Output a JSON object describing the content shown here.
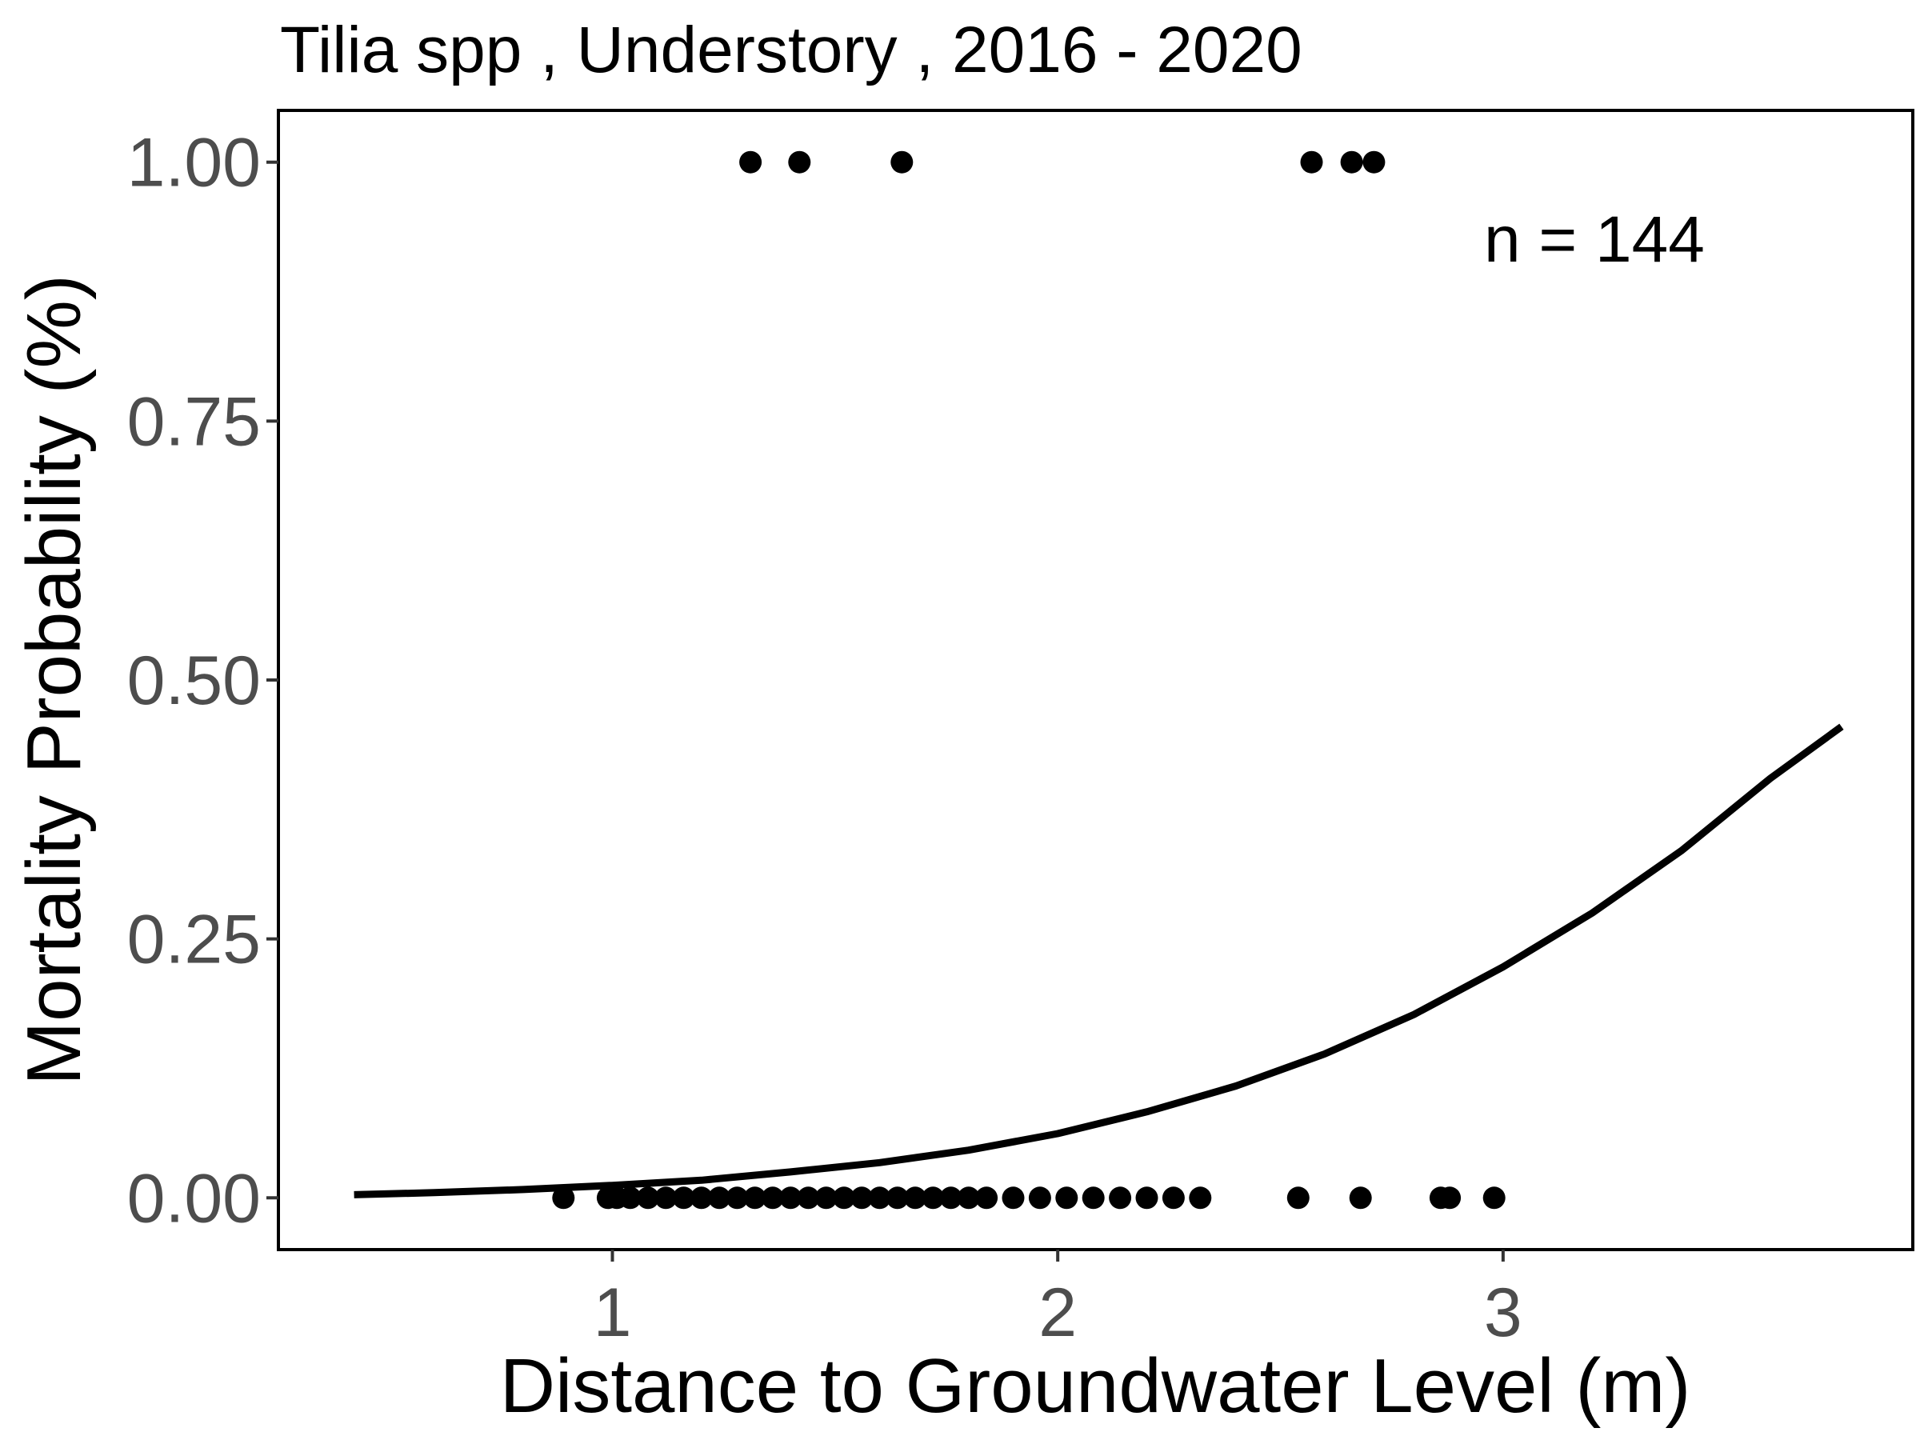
{
  "chart_data": {
    "type": "scatter",
    "title": "Tilia spp , Understory , 2016 - 2020",
    "xlabel": "Distance to Groundwater Level (m)",
    "ylabel": "Mortality Probability (%)",
    "xlim": [
      0.25,
      3.92
    ],
    "ylim": [
      -0.05,
      1.05
    ],
    "x_ticks": [
      1,
      2,
      3
    ],
    "x_tick_labels": [
      "1",
      "2",
      "3"
    ],
    "y_ticks": [
      0,
      0.25,
      0.5,
      0.75,
      1.0
    ],
    "y_tick_labels": [
      "0.00",
      "0.25",
      "0.50",
      "0.75",
      "1.00"
    ],
    "grid": false,
    "annotation": "n =  144",
    "colors": {
      "points": "#000000",
      "curve": "#000000",
      "panel_border": "#000000"
    },
    "series": [
      {
        "kind": "points",
        "x": [
          1.31,
          1.42,
          1.65,
          2.57,
          2.66,
          2.71,
          0.89,
          0.99,
          1.01,
          1.04,
          1.08,
          1.12,
          1.16,
          1.2,
          1.24,
          1.28,
          1.32,
          1.36,
          1.4,
          1.44,
          1.48,
          1.52,
          1.56,
          1.6,
          1.64,
          1.68,
          1.72,
          1.76,
          1.8,
          1.84,
          1.9,
          1.96,
          2.02,
          2.08,
          2.14,
          2.2,
          2.26,
          2.32,
          2.54,
          2.68,
          2.86,
          2.88,
          2.98
        ],
        "y": [
          1,
          1,
          1,
          1,
          1,
          1,
          0,
          0,
          0,
          0,
          0,
          0,
          0,
          0,
          0,
          0,
          0,
          0,
          0,
          0,
          0,
          0,
          0,
          0,
          0,
          0,
          0,
          0,
          0,
          0,
          0,
          0,
          0,
          0,
          0,
          0,
          0,
          0,
          0,
          0,
          0,
          0,
          0
        ]
      },
      {
        "kind": "curve",
        "x": [
          0.42,
          0.6,
          0.8,
          1.0,
          1.2,
          1.4,
          1.6,
          1.8,
          2.0,
          2.2,
          2.4,
          2.6,
          2.8,
          3.0,
          3.2,
          3.4,
          3.6,
          3.76
        ],
        "y": [
          0.003,
          0.005,
          0.008,
          0.012,
          0.017,
          0.025,
          0.034,
          0.046,
          0.062,
          0.083,
          0.108,
          0.139,
          0.177,
          0.223,
          0.275,
          0.335,
          0.405,
          0.455
        ]
      }
    ]
  }
}
